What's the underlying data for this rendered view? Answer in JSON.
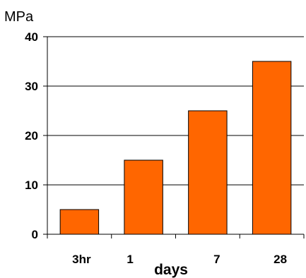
{
  "chart_data": {
    "type": "bar",
    "categories": [
      "3hr",
      "1",
      "7",
      "28"
    ],
    "values": [
      5,
      15,
      25,
      35
    ],
    "title": "",
    "ylabel": "MPa",
    "xlabel": "days",
    "ylim": [
      0,
      40
    ],
    "yticks": [
      0,
      10,
      20,
      30,
      40
    ],
    "grid": true,
    "bar_color": "#ff6600",
    "bar_edge_color": "#000000"
  }
}
